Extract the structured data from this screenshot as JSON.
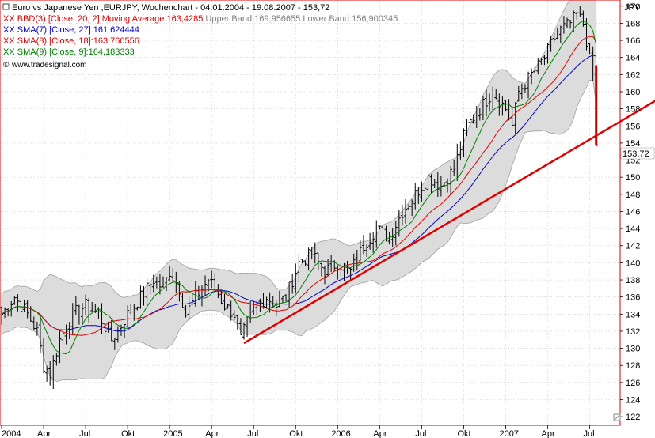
{
  "header": {
    "title": "Euro vs Japanese Yen ,EURJPY, Wochenchart - 04.01.2004 - 19.08.2007 - 153,72",
    "legend": [
      {
        "prefix": "XX",
        "text": "BBD(3) [Close, 20, 2] Moving Average:163,4285",
        "extra": " Upper Band:169,956655 Lower Band:156,900345",
        "color": "#e00000"
      },
      {
        "prefix": "XX",
        "text": "SMA(7) [Close, 27]:161,624444",
        "extra": "",
        "color": "#0000c8"
      },
      {
        "prefix": "XX",
        "text": "SMA(8) [Close, 18]:163,760556",
        "extra": "",
        "color": "#e00000"
      },
      {
        "prefix": "XX",
        "text": "SMA(9) [Close, 9]:164,183333",
        "extra": "",
        "color": "#008000"
      }
    ],
    "copyright": "www.tradesignal.com"
  },
  "chart_data": {
    "type": "line",
    "subtype": "ohlc-weekly",
    "instrument": "EURJPY",
    "currency_label": "JPY",
    "last_value_label": "153,72",
    "y_ticks": [
      122,
      124,
      126,
      128,
      130,
      132,
      134,
      136,
      138,
      140,
      142,
      144,
      146,
      148,
      150,
      152,
      154,
      156,
      158,
      160,
      162,
      164,
      166,
      168,
      170,
      172
    ],
    "ylim": [
      122,
      174
    ],
    "x_ticks": [
      "2004",
      "Apr",
      "Jul",
      "Okt",
      "2005",
      "Apr",
      "Jul",
      "Okt",
      "2006",
      "Apr",
      "Jul",
      "Okt",
      "2007",
      "Apr",
      "Jul"
    ],
    "x_tick_weeks": [
      0,
      13,
      26,
      39,
      52,
      65,
      78,
      91,
      104,
      117,
      130,
      143,
      156,
      169,
      182
    ],
    "weeks_total": 190,
    "close_anchors": [
      [
        0,
        134
      ],
      [
        4,
        136
      ],
      [
        8,
        134
      ],
      [
        11,
        132
      ],
      [
        13,
        128
      ],
      [
        15,
        127
      ],
      [
        18,
        131
      ],
      [
        22,
        134
      ],
      [
        26,
        135
      ],
      [
        30,
        134
      ],
      [
        34,
        131
      ],
      [
        36,
        132
      ],
      [
        39,
        134
      ],
      [
        43,
        136
      ],
      [
        47,
        138
      ],
      [
        50,
        137
      ],
      [
        52,
        139
      ],
      [
        55,
        137
      ],
      [
        57,
        134
      ],
      [
        60,
        136
      ],
      [
        64,
        138
      ],
      [
        66,
        137
      ],
      [
        69,
        135
      ],
      [
        72,
        134
      ],
      [
        74,
        131
      ],
      [
        76,
        133
      ],
      [
        79,
        135
      ],
      [
        82,
        136
      ],
      [
        85,
        135
      ],
      [
        88,
        136
      ],
      [
        92,
        140
      ],
      [
        96,
        141
      ],
      [
        100,
        139
      ],
      [
        104,
        140
      ],
      [
        108,
        139
      ],
      [
        112,
        142
      ],
      [
        116,
        144
      ],
      [
        120,
        143
      ],
      [
        124,
        146
      ],
      [
        128,
        148
      ],
      [
        132,
        150
      ],
      [
        136,
        149
      ],
      [
        140,
        151
      ],
      [
        144,
        156
      ],
      [
        148,
        158
      ],
      [
        152,
        160
      ],
      [
        156,
        158
      ],
      [
        158,
        156
      ],
      [
        160,
        160
      ],
      [
        164,
        162
      ],
      [
        168,
        164
      ],
      [
        172,
        167
      ],
      [
        176,
        168
      ],
      [
        178,
        169
      ],
      [
        180,
        168
      ],
      [
        182,
        164
      ],
      [
        183,
        162
      ],
      [
        184,
        153.72
      ]
    ],
    "series": [
      {
        "name": "BBD(3) [Close, 20, 2]",
        "role": "bands",
        "color": "#e00000"
      },
      {
        "name": "SMA(7) [Close, 27]",
        "period": 27,
        "color": "#0000c8"
      },
      {
        "name": "SMA(8) [Close, 18]",
        "period": 18,
        "color": "#e00000"
      },
      {
        "name": "SMA(9) [Close, 9]",
        "period": 9,
        "color": "#008000"
      }
    ],
    "trendline": {
      "start": [
        75,
        130.6
      ],
      "end": [
        217,
        162.2
      ],
      "color": "#e00000"
    },
    "grid": true,
    "legend_position": "top-left"
  }
}
